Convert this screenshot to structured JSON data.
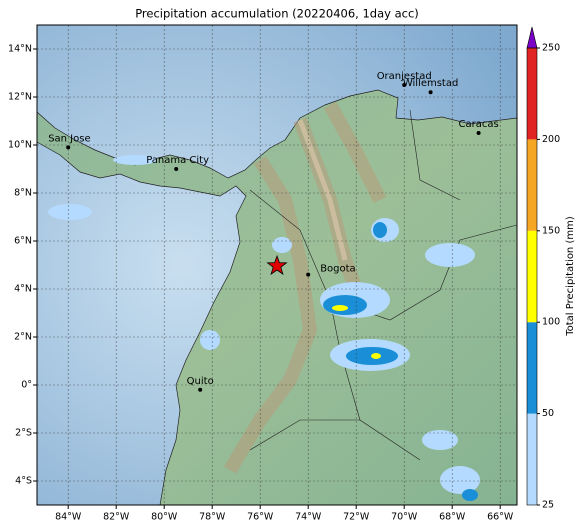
{
  "title": "Precipitation accumulation (20220406, 1day acc)",
  "map": {
    "lon_range": [
      -85.3,
      -65.3
    ],
    "lat_range": [
      -5,
      15
    ],
    "lon_ticks": [
      {
        "value": -84,
        "label": "84°W"
      },
      {
        "value": -82,
        "label": "82°W"
      },
      {
        "value": -80,
        "label": "80°W"
      },
      {
        "value": -78,
        "label": "78°W"
      },
      {
        "value": -76,
        "label": "76°W"
      },
      {
        "value": -74,
        "label": "74°W"
      },
      {
        "value": -72,
        "label": "72°W"
      },
      {
        "value": -70,
        "label": "70°W"
      },
      {
        "value": -68,
        "label": "68°W"
      },
      {
        "value": -66,
        "label": "66°W"
      }
    ],
    "lat_ticks": [
      {
        "value": 14,
        "label": "14°N"
      },
      {
        "value": 12,
        "label": "12°N"
      },
      {
        "value": 10,
        "label": "10°N"
      },
      {
        "value": 8,
        "label": "8°N"
      },
      {
        "value": 6,
        "label": "6°N"
      },
      {
        "value": 4,
        "label": "4°N"
      },
      {
        "value": 2,
        "label": "2°N"
      },
      {
        "value": 0,
        "label": "0°"
      },
      {
        "value": -2,
        "label": "2°S"
      },
      {
        "value": -4,
        "label": "4°S"
      }
    ],
    "cities": [
      {
        "name": "San Jose",
        "lon": -84.0,
        "lat": 9.9
      },
      {
        "name": "Panama City",
        "lon": -79.5,
        "lat": 9.0
      },
      {
        "name": "Bogota",
        "lon": -74.0,
        "lat": 4.6
      },
      {
        "name": "Quito",
        "lon": -78.5,
        "lat": -0.2
      },
      {
        "name": "Oranjestad",
        "lon": -70.0,
        "lat": 12.5
      },
      {
        "name": "Willemstad",
        "lon": -68.9,
        "lat": 12.2
      },
      {
        "name": "Caracas",
        "lon": -66.9,
        "lat": 10.5
      }
    ],
    "star": {
      "lon": -75.3,
      "lat": 4.96
    }
  },
  "colorbar": {
    "label": "Total Precipitation (mm)",
    "levels": [
      25,
      50,
      100,
      150,
      200,
      250
    ],
    "colors": [
      "#b4dbff",
      "#1a8fd8",
      "#ffff00",
      "#f5a623",
      "#e02424"
    ],
    "extend_color": "#7a00c8"
  }
}
